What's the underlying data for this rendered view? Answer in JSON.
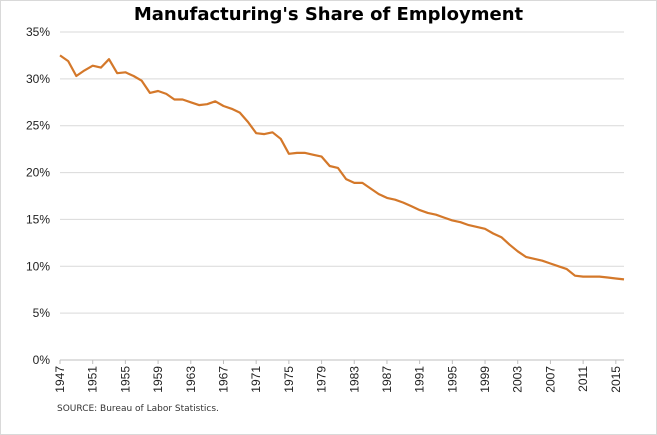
{
  "chart_data": {
    "type": "line",
    "title": "Manufacturing's Share of Employment",
    "source": "SOURCE: Bureau of Labor Statistics.",
    "xlabel": "",
    "ylabel": "",
    "ylim": [
      0,
      35
    ],
    "xlim": [
      1947,
      2016
    ],
    "grid": true,
    "legend": "none",
    "yticks": [
      "0%",
      "5%",
      "10%",
      "15%",
      "20%",
      "25%",
      "30%",
      "35%"
    ],
    "ytick_values": [
      0,
      5,
      10,
      15,
      20,
      25,
      30,
      35
    ],
    "xticks": [
      "1947",
      "1951",
      "1955",
      "1959",
      "1963",
      "1967",
      "1971",
      "1975",
      "1979",
      "1983",
      "1987",
      "1991",
      "1995",
      "1999",
      "2003",
      "2007",
      "2011",
      "2015"
    ],
    "xtick_values": [
      1947,
      1951,
      1955,
      1959,
      1963,
      1967,
      1971,
      1975,
      1979,
      1983,
      1987,
      1991,
      1995,
      1999,
      2003,
      2007,
      2011,
      2015
    ],
    "line_color": "#D4782A",
    "x": [
      1947,
      1948,
      1949,
      1950,
      1951,
      1952,
      1953,
      1954,
      1955,
      1956,
      1957,
      1958,
      1959,
      1960,
      1961,
      1962,
      1963,
      1964,
      1965,
      1966,
      1967,
      1968,
      1969,
      1970,
      1971,
      1972,
      1973,
      1974,
      1975,
      1976,
      1977,
      1978,
      1979,
      1980,
      1981,
      1982,
      1983,
      1984,
      1985,
      1986,
      1987,
      1988,
      1989,
      1990,
      1991,
      1992,
      1993,
      1994,
      1995,
      1996,
      1997,
      1998,
      1999,
      2000,
      2001,
      2002,
      2003,
      2004,
      2005,
      2006,
      2007,
      2008,
      2009,
      2010,
      2011,
      2012,
      2013,
      2014,
      2015,
      2016
    ],
    "values": [
      32.5,
      31.9,
      30.3,
      30.9,
      31.4,
      31.2,
      32.1,
      30.6,
      30.7,
      30.3,
      29.8,
      28.5,
      28.7,
      28.4,
      27.8,
      27.8,
      27.5,
      27.2,
      27.3,
      27.6,
      27.1,
      26.8,
      26.4,
      25.4,
      24.2,
      24.1,
      24.3,
      23.6,
      22.0,
      22.1,
      22.1,
      21.9,
      21.7,
      20.7,
      20.5,
      19.3,
      18.9,
      18.9,
      18.3,
      17.7,
      17.3,
      17.1,
      16.8,
      16.4,
      16.0,
      15.7,
      15.5,
      15.2,
      14.9,
      14.7,
      14.4,
      14.2,
      14.0,
      13.5,
      13.1,
      12.3,
      11.6,
      11.0,
      10.8,
      10.6,
      10.3,
      10.0,
      9.7,
      9.0,
      8.9,
      8.9,
      8.9,
      8.8,
      8.7,
      8.6
    ]
  }
}
